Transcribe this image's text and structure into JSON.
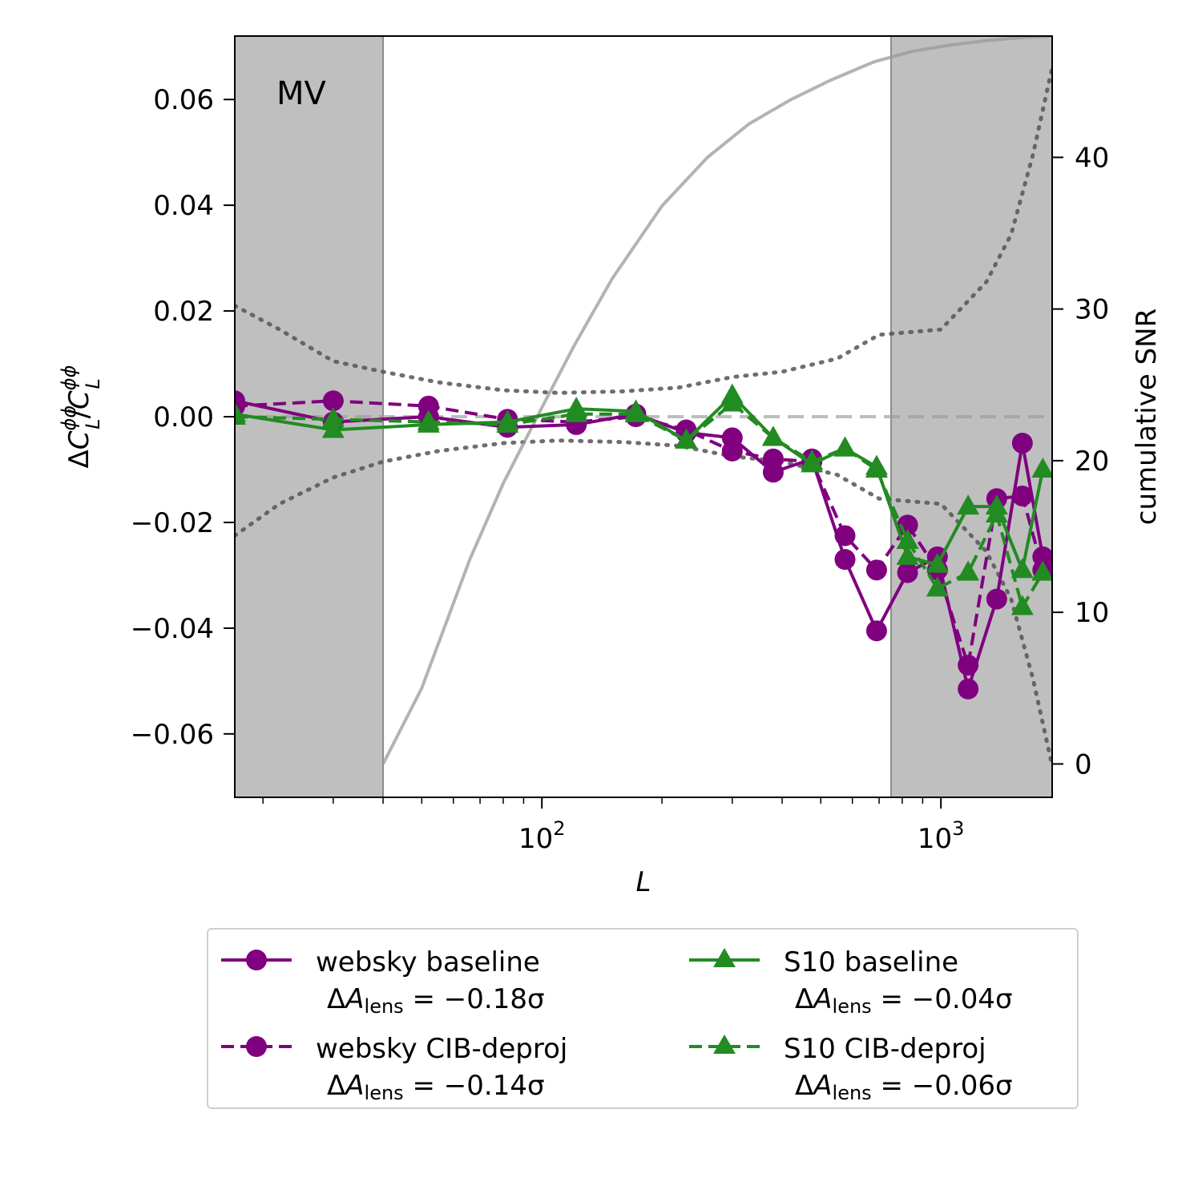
{
  "chart_data": {
    "type": "line",
    "title": "",
    "annotation": "MV",
    "xlabel": "L",
    "ylabel": "ΔC_L^{φφ}/C_L^{φφ}",
    "y2label": "cumulative SNR",
    "xscale": "log",
    "xlim": [
      17,
      1900
    ],
    "ylim": [
      -0.072,
      0.072
    ],
    "y2lim": [
      -2.2,
      48.0
    ],
    "x_ticks": [
      {
        "value": 100,
        "base": "10",
        "exp": "2"
      },
      {
        "value": 1000,
        "base": "10",
        "exp": "3"
      }
    ],
    "y_ticks": [
      {
        "value": 0.06,
        "label": "0.06"
      },
      {
        "value": 0.04,
        "label": "0.04"
      },
      {
        "value": 0.02,
        "label": "0.02"
      },
      {
        "value": 0.0,
        "label": "0.00"
      },
      {
        "value": -0.02,
        "label": "−0.02"
      },
      {
        "value": -0.04,
        "label": "−0.04"
      },
      {
        "value": -0.06,
        "label": "−0.06"
      }
    ],
    "y2_ticks": [
      {
        "value": 40,
        "label": "40"
      },
      {
        "value": 30,
        "label": "30"
      },
      {
        "value": 20,
        "label": "20"
      },
      {
        "value": 10,
        "label": "10"
      },
      {
        "value": 0,
        "label": "0"
      }
    ],
    "excluded_ranges": [
      [
        17,
        40
      ],
      [
        750,
        1900
      ]
    ],
    "reference_line": 0.0,
    "series": [
      {
        "name": "websky baseline",
        "delta_A": "−0.18σ",
        "color": "#800080",
        "linestyle": "solid",
        "marker": "circle",
        "x": [
          17,
          30,
          52,
          82,
          122,
          172,
          230,
          300,
          380,
          475,
          575,
          690,
          825,
          980,
          1170,
          1380,
          1600,
          1800
        ],
        "y": [
          0.003,
          -0.001,
          0.0,
          -0.002,
          -0.0015,
          0.0005,
          -0.003,
          -0.004,
          -0.0105,
          -0.008,
          -0.027,
          -0.0405,
          -0.0295,
          -0.0265,
          -0.0515,
          -0.0345,
          -0.005,
          -0.0265
        ]
      },
      {
        "name": "websky CIB-deproj",
        "delta_A": "−0.14σ",
        "color": "#800080",
        "linestyle": "dashed",
        "marker": "circle",
        "x": [
          17,
          30,
          52,
          82,
          122,
          172,
          230,
          300,
          380,
          475,
          575,
          690,
          825,
          980,
          1170,
          1380,
          1600,
          1800
        ],
        "y": [
          0.002,
          0.003,
          0.002,
          -0.0005,
          -0.001,
          0.0,
          -0.0025,
          -0.0065,
          -0.008,
          -0.0085,
          -0.0225,
          -0.029,
          -0.0205,
          -0.029,
          -0.047,
          -0.0155,
          -0.015,
          -0.029
        ]
      },
      {
        "name": "S10 baseline",
        "delta_A": "−0.04σ",
        "color": "#228b22",
        "linestyle": "solid",
        "marker": "triangle",
        "x": [
          17,
          30,
          52,
          82,
          122,
          172,
          230,
          300,
          380,
          475,
          575,
          690,
          825,
          980,
          1170,
          1380,
          1600,
          1800
        ],
        "y": [
          0.0005,
          -0.0025,
          -0.0015,
          -0.001,
          0.0015,
          0.001,
          -0.0045,
          0.004,
          -0.004,
          -0.009,
          -0.006,
          -0.0095,
          -0.0265,
          -0.028,
          -0.017,
          -0.017,
          -0.029,
          -0.01
        ]
      },
      {
        "name": "S10 CIB-deproj",
        "delta_A": "−0.06σ",
        "color": "#228b22",
        "linestyle": "dashed",
        "marker": "triangle",
        "x": [
          17,
          30,
          52,
          82,
          122,
          172,
          230,
          300,
          380,
          475,
          575,
          690,
          825,
          980,
          1170,
          1380,
          1600,
          1800
        ],
        "y": [
          0.0,
          -0.0005,
          -0.001,
          -0.0015,
          0.0005,
          0.0005,
          -0.0045,
          0.0025,
          -0.004,
          -0.0085,
          -0.006,
          -0.01,
          -0.0235,
          -0.0325,
          -0.0295,
          -0.0185,
          -0.036,
          -0.0295
        ]
      }
    ],
    "cumulative_snr": {
      "color": "#999999",
      "x": [
        40,
        50,
        66,
        80,
        100,
        120,
        150,
        200,
        260,
        330,
        420,
        530,
        680,
        850,
        1050,
        1300,
        1600,
        1900
      ],
      "y": [
        0.0,
        5.0,
        13.5,
        18.5,
        23.5,
        27.5,
        32.0,
        36.8,
        40.0,
        42.2,
        43.8,
        45.1,
        46.3,
        47.0,
        47.4,
        47.7,
        47.9,
        48.0
      ]
    },
    "error_envelope": {
      "color": "#555555",
      "x": [
        17,
        22,
        30,
        40,
        55,
        80,
        110,
        160,
        220,
        300,
        400,
        550,
        700,
        1000,
        1300,
        1500,
        1700,
        1900
      ],
      "upper": [
        0.021,
        0.0165,
        0.0105,
        0.0085,
        0.0065,
        0.005,
        0.0045,
        0.0048,
        0.0055,
        0.0075,
        0.0085,
        0.011,
        0.0155,
        0.0165,
        0.0255,
        0.0345,
        0.0495,
        0.066
      ],
      "lower": [
        -0.0225,
        -0.0165,
        -0.0115,
        -0.0085,
        -0.0065,
        -0.005,
        -0.0045,
        -0.0048,
        -0.0055,
        -0.0075,
        -0.0085,
        -0.011,
        -0.0155,
        -0.0165,
        -0.0255,
        -0.0345,
        -0.0495,
        -0.066
      ]
    }
  }
}
